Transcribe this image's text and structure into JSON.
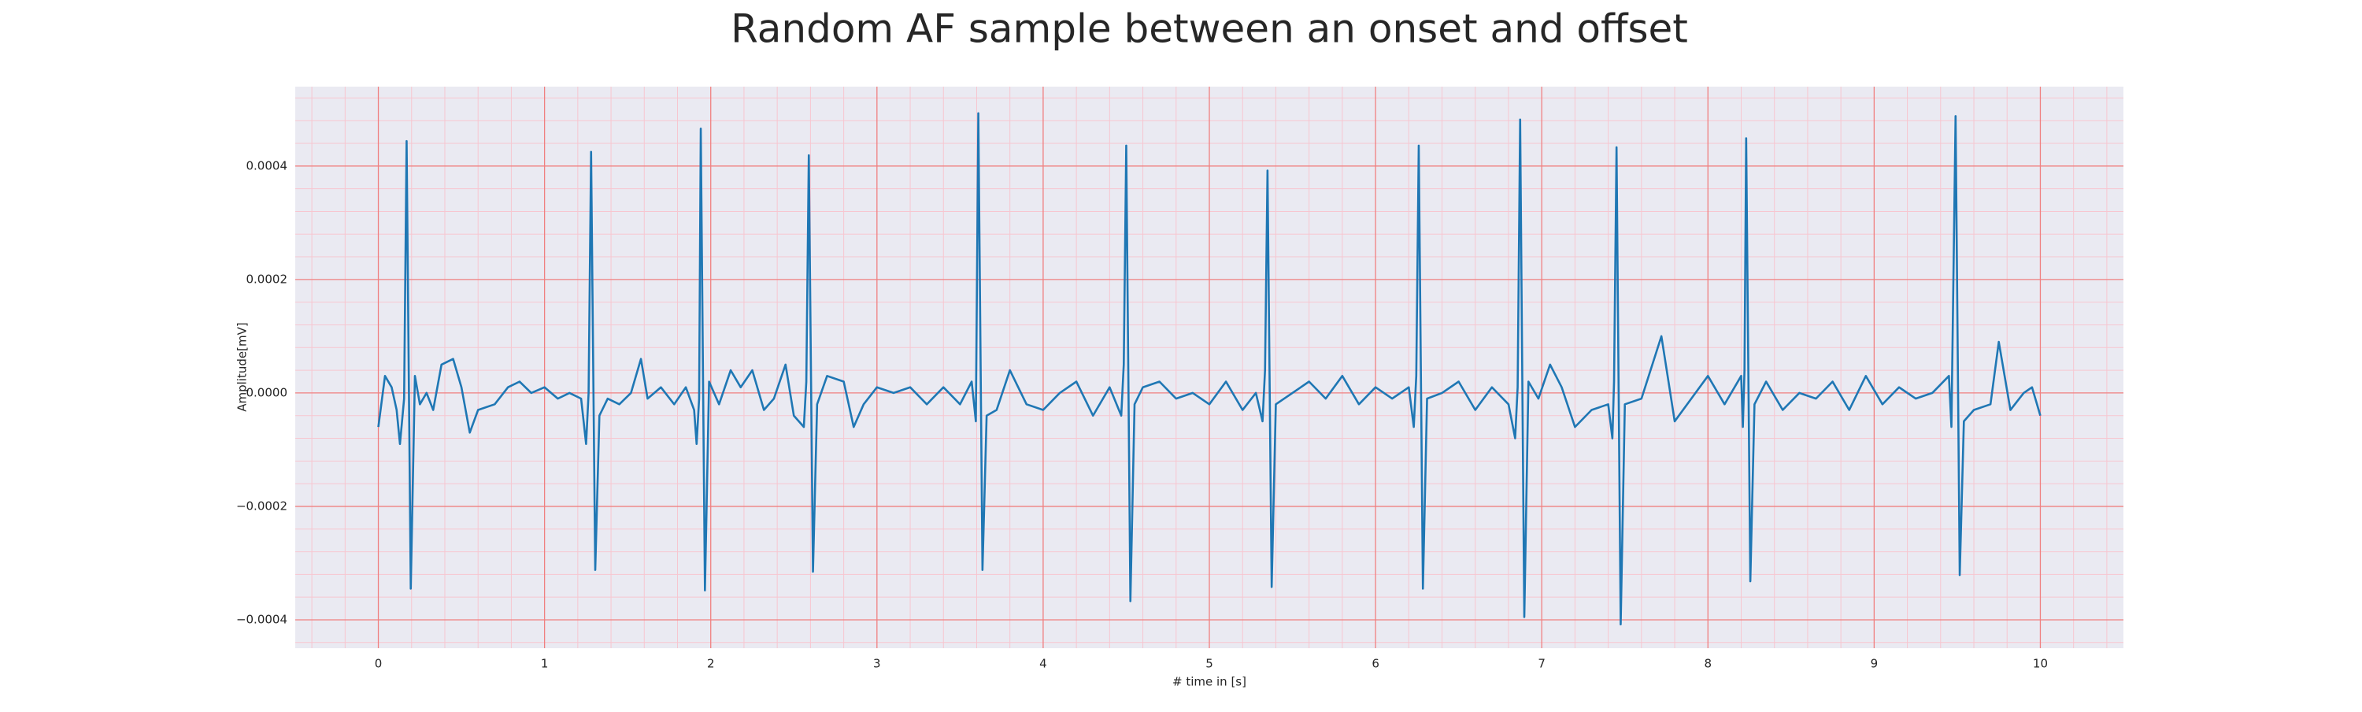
{
  "chart_data": {
    "type": "line",
    "title": "Random AF sample between an onset and offset",
    "xlabel": "# time in [s]",
    "ylabel": "Amplitude[mV]",
    "color": "#1f77b4",
    "grid": true,
    "grid_color": "#f08080",
    "minor_grid": true,
    "minor_grid_color": "#f7c6d0",
    "background": "#eaeaf2",
    "xlim": [
      -0.5,
      10.5
    ],
    "xticks": [
      0,
      1,
      2,
      3,
      4,
      5,
      6,
      7,
      8,
      9,
      10
    ],
    "ylim": [
      -0.00045,
      0.00054
    ],
    "yticks": [
      {
        "value": -0.0004,
        "label": "−0.0004"
      },
      {
        "value": -0.0002,
        "label": "−0.0002"
      },
      {
        "value": 0,
        "label": "0.0000"
      },
      {
        "value": 0.0002,
        "label": "0.0002"
      },
      {
        "value": 0.0004,
        "label": "0.0004"
      }
    ],
    "x": [
      0.0,
      0.04,
      0.08,
      0.11,
      0.13,
      0.155,
      0.17,
      0.195,
      0.22,
      0.25,
      0.29,
      0.33,
      0.38,
      0.45,
      0.5,
      0.55,
      0.6,
      0.7,
      0.78,
      0.85,
      0.92,
      1.0,
      1.08,
      1.15,
      1.22,
      1.25,
      1.265,
      1.28,
      1.305,
      1.33,
      1.38,
      1.45,
      1.52,
      1.58,
      1.62,
      1.7,
      1.78,
      1.85,
      1.9,
      1.915,
      1.93,
      1.94,
      1.965,
      1.99,
      2.05,
      2.12,
      2.18,
      2.25,
      2.32,
      2.38,
      2.45,
      2.5,
      2.56,
      2.575,
      2.59,
      2.615,
      2.64,
      2.7,
      2.8,
      2.86,
      2.92,
      3.0,
      3.1,
      3.2,
      3.3,
      3.4,
      3.5,
      3.57,
      3.595,
      3.61,
      3.635,
      3.66,
      3.72,
      3.8,
      3.9,
      4.0,
      4.1,
      4.2,
      4.3,
      4.4,
      4.47,
      4.485,
      4.5,
      4.525,
      4.55,
      4.6,
      4.7,
      4.8,
      4.9,
      5.0,
      5.1,
      5.2,
      5.28,
      5.32,
      5.335,
      5.35,
      5.375,
      5.4,
      5.5,
      5.6,
      5.7,
      5.8,
      5.9,
      6.0,
      6.1,
      6.2,
      6.23,
      6.245,
      6.26,
      6.285,
      6.31,
      6.4,
      6.5,
      6.6,
      6.7,
      6.8,
      6.84,
      6.855,
      6.87,
      6.895,
      6.92,
      6.98,
      7.05,
      7.12,
      7.2,
      7.3,
      7.4,
      7.425,
      7.435,
      7.45,
      7.475,
      7.5,
      7.6,
      7.72,
      7.8,
      7.9,
      8.0,
      8.1,
      8.2,
      8.21,
      8.22,
      8.23,
      8.255,
      8.28,
      8.35,
      8.45,
      8.55,
      8.65,
      8.75,
      8.85,
      8.95,
      9.05,
      9.15,
      9.25,
      9.35,
      9.45,
      9.465,
      9.49,
      9.515,
      9.54,
      9.6,
      9.7,
      9.75,
      9.82,
      9.9,
      9.95,
      10.0
    ],
    "values": [
      -6e-05,
      3e-05,
      1e-05,
      -3e-05,
      -9e-05,
      -1e-05,
      0.000444,
      -0.000345,
      3e-05,
      -2e-05,
      0.0,
      -3e-05,
      5e-05,
      6e-05,
      1e-05,
      -7e-05,
      -3e-05,
      -2e-05,
      1e-05,
      2e-05,
      0.0,
      1e-05,
      -1e-05,
      0.0,
      -1e-05,
      -9e-05,
      0.0,
      0.000425,
      -0.000312,
      -4e-05,
      -1e-05,
      -2e-05,
      0.0,
      6e-05,
      -1e-05,
      1e-05,
      -2e-05,
      1e-05,
      -3e-05,
      -9e-05,
      -1e-05,
      0.000466,
      -0.000348,
      2e-05,
      -2e-05,
      4e-05,
      1e-05,
      4e-05,
      -3e-05,
      -1e-05,
      5e-05,
      -4e-05,
      -6e-05,
      2e-05,
      0.000419,
      -0.000315,
      -2e-05,
      3e-05,
      2e-05,
      -6e-05,
      -2e-05,
      1e-05,
      0.0,
      1e-05,
      -2e-05,
      1e-05,
      -2e-05,
      2e-05,
      -5e-05,
      0.000493,
      -0.000312,
      -4e-05,
      -3e-05,
      4e-05,
      -2e-05,
      -3e-05,
      0.0,
      2e-05,
      -4e-05,
      1e-05,
      -4e-05,
      5e-05,
      0.000436,
      -0.000367,
      -2e-05,
      1e-05,
      2e-05,
      -1e-05,
      0.0,
      -2e-05,
      2e-05,
      -3e-05,
      0.0,
      -5e-05,
      4e-05,
      0.000392,
      -0.000342,
      -2e-05,
      0.0,
      2e-05,
      -1e-05,
      3e-05,
      -2e-05,
      1e-05,
      -1e-05,
      1e-05,
      -6e-05,
      3e-05,
      0.000436,
      -0.000345,
      -1e-05,
      0.0,
      2e-05,
      -3e-05,
      1e-05,
      -2e-05,
      -8e-05,
      1e-05,
      0.000482,
      -0.000395,
      2e-05,
      -1e-05,
      5e-05,
      1e-05,
      -6e-05,
      -3e-05,
      -2e-05,
      -8e-05,
      2e-05,
      0.000433,
      -0.000408,
      -2e-05,
      -1e-05,
      0.0001,
      -5e-05,
      -1e-05,
      3e-05,
      -2e-05,
      3e-05,
      -6e-05,
      4e-05,
      0.000449,
      -0.000332,
      -2e-05,
      2e-05,
      -3e-05,
      0.0,
      -1e-05,
      2e-05,
      -3e-05,
      3e-05,
      -2e-05,
      1e-05,
      -1e-05,
      0.0,
      3e-05,
      -6e-05,
      0.000488,
      -0.000321,
      -5e-05,
      -3e-05,
      -2e-05,
      9e-05,
      -3e-05,
      0.0,
      1e-05,
      -4e-05
    ]
  }
}
